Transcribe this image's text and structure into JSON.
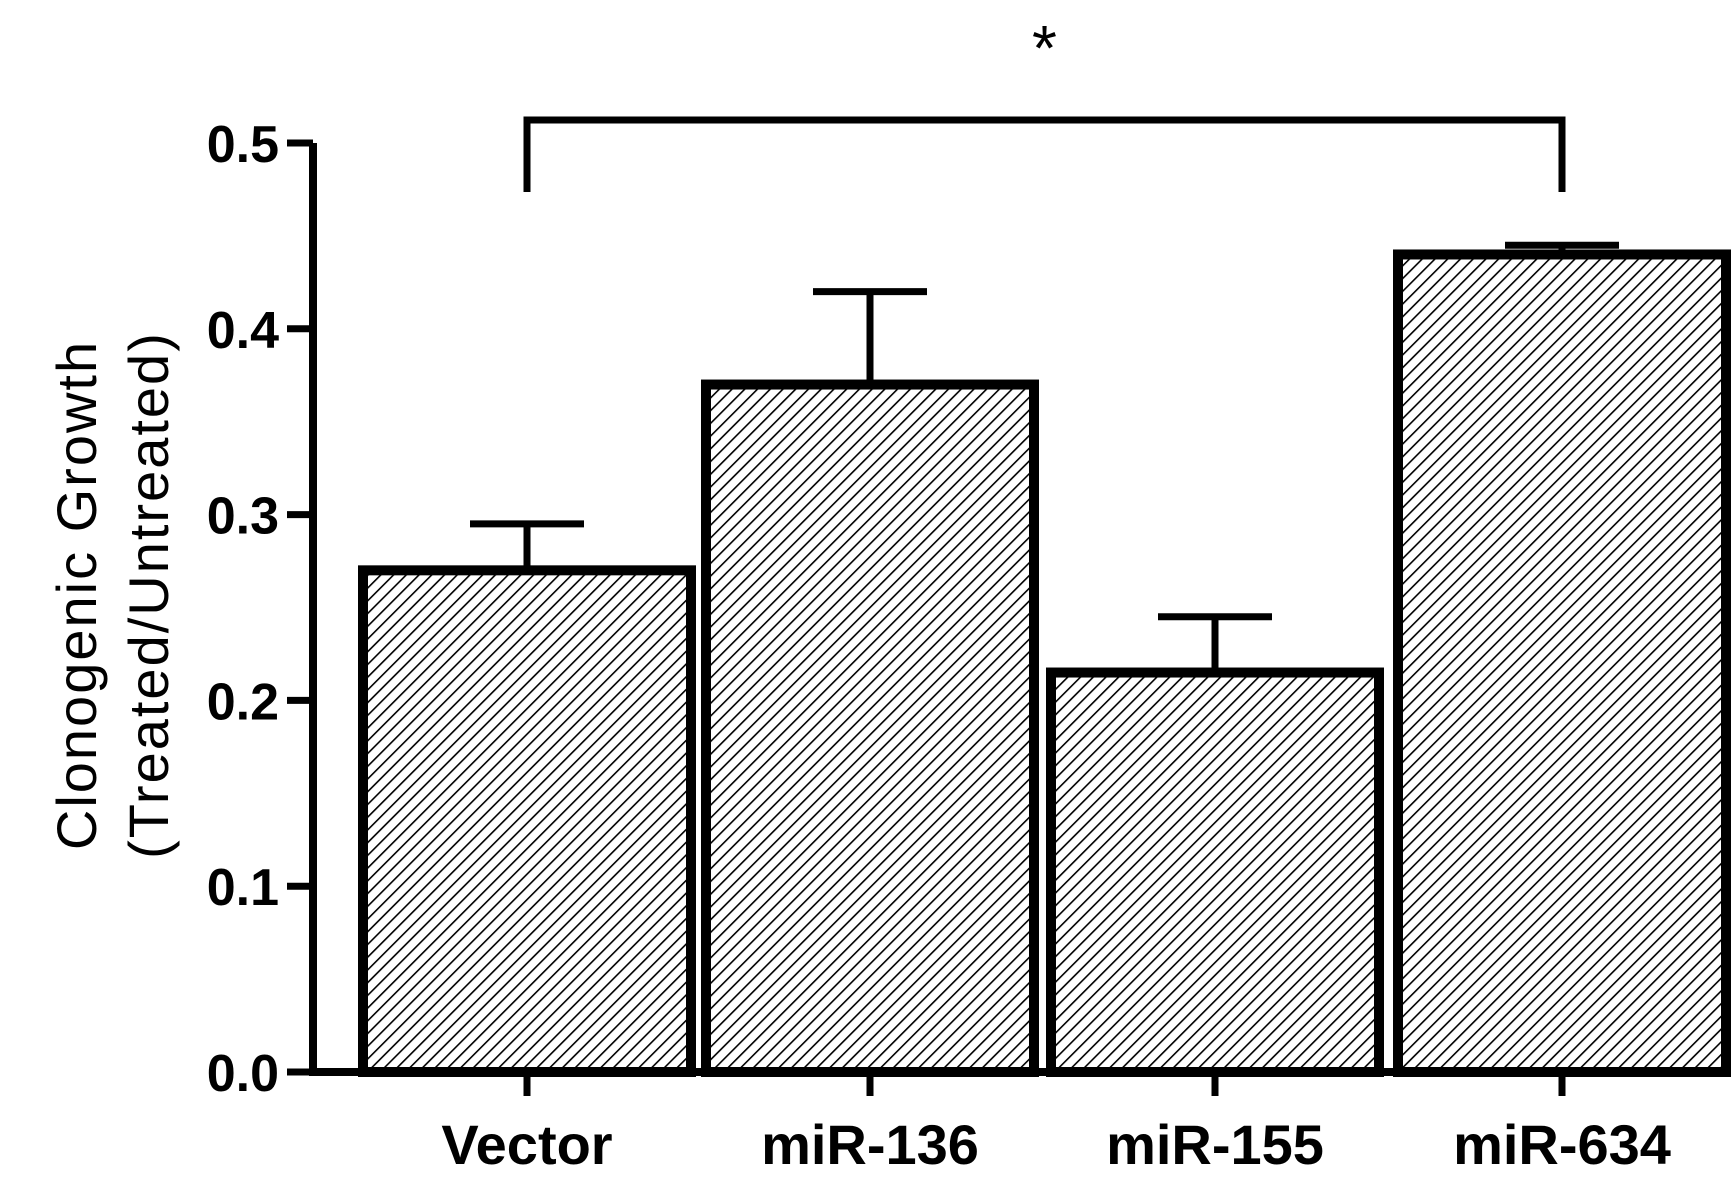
{
  "chart_data": {
    "type": "bar",
    "title": "",
    "xlabel": "",
    "ylabel_lines": [
      "Clonogenic Growth",
      "(Treated/Untreated)"
    ],
    "categories": [
      "Vector",
      "miR-136",
      "miR-155",
      "miR-634"
    ],
    "values": [
      0.27,
      0.37,
      0.215,
      0.44
    ],
    "errors": [
      0.025,
      0.05,
      0.03,
      0.005
    ],
    "ylim": [
      0.0,
      0.5
    ],
    "yticks": [
      "0.0",
      "0.1",
      "0.2",
      "0.3",
      "0.4",
      "0.5"
    ],
    "significance": {
      "from": "Vector",
      "to": "miR-634",
      "label": "*"
    },
    "bar_fill": "hatched",
    "colors": {
      "stroke": "#000000",
      "hatch": "#000000",
      "background": "#ffffff"
    },
    "grid": false,
    "legend": "none"
  }
}
